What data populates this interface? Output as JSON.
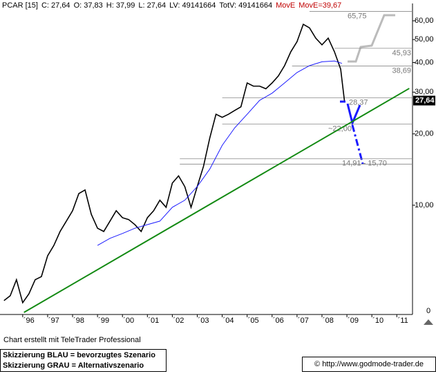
{
  "chart_data": {
    "type": "line",
    "header": [
      "PCAR [15]",
      "C: 27,64",
      "O: 37,83",
      "H: 37,99",
      "L: 27,64",
      "LV: 49141664",
      "TotV: 49141664",
      "MovE",
      "MovE=39,67"
    ],
    "log_scale": true,
    "xlim": [
      1995.09,
      2011.63
    ],
    "ylim": [
      3.46,
      71
    ],
    "xticks": [
      {
        "value": 1996,
        "label": "´96"
      },
      {
        "value": 1997,
        "label": "´97"
      },
      {
        "value": 1998,
        "label": "´98"
      },
      {
        "value": 1999,
        "label": "´99"
      },
      {
        "value": 2000,
        "label": "´00"
      },
      {
        "value": 2001,
        "label": "´01"
      },
      {
        "value": 2002,
        "label": "´02"
      },
      {
        "value": 2003,
        "label": "´03"
      },
      {
        "value": 2004,
        "label": "´04"
      },
      {
        "value": 2005,
        "label": "´05"
      },
      {
        "value": 2006,
        "label": "´06"
      },
      {
        "value": 2007,
        "label": "´07"
      },
      {
        "value": 2008,
        "label": "´08"
      },
      {
        "value": 2009,
        "label": "´09"
      },
      {
        "value": 2010,
        "label": "´10"
      },
      {
        "value": 2011,
        "label": "´11"
      }
    ],
    "yticks": [
      {
        "value": 10,
        "label": "10,00"
      },
      {
        "value": 20,
        "label": "20,00"
      },
      {
        "value": 30,
        "label": "30,00"
      },
      {
        "value": 40,
        "label": "40,00"
      },
      {
        "value": 50,
        "label": "50,00"
      },
      {
        "value": 60,
        "label": "60,00"
      }
    ],
    "bottom_label": "0",
    "series": [
      {
        "color": "#000000",
        "x": [
          1995.25,
          1995.5,
          1995.75,
          1996.0,
          1996.25,
          1996.5,
          1996.75,
          1997.0,
          1997.25,
          1997.5,
          1997.75,
          1998.0,
          1998.25,
          1998.5,
          1998.75,
          1999.0,
          1999.25,
          1999.5,
          1999.75,
          2000.0,
          2000.25,
          2000.5,
          2000.75,
          2001.0,
          2001.25,
          2001.5,
          2001.75,
          2002.0,
          2002.25,
          2002.5,
          2002.75,
          2003.0,
          2003.25,
          2003.5,
          2003.75,
          2004.0,
          2004.25,
          2004.5,
          2004.75,
          2005.0,
          2005.25,
          2005.5,
          2005.75,
          2006.0,
          2006.25,
          2006.5,
          2006.75,
          2007.0,
          2007.25,
          2007.5,
          2007.75,
          2008.0,
          2008.25,
          2008.5,
          2008.75,
          2008.9
        ],
        "values": [
          3.96,
          4.15,
          4.85,
          3.88,
          4.23,
          4.85,
          5.0,
          6.12,
          6.77,
          7.75,
          8.57,
          9.48,
          11.2,
          11.6,
          9.16,
          8.0,
          7.75,
          8.57,
          9.48,
          8.86,
          8.7,
          8.28,
          7.75,
          8.86,
          9.48,
          10.5,
          9.8,
          12.4,
          13.3,
          11.98,
          9.8,
          12.0,
          14.6,
          19.2,
          24.2,
          23.5,
          24.2,
          25.1,
          26.0,
          32.8,
          31.8,
          31.8,
          31.0,
          32.8,
          35.1,
          38.8,
          44.4,
          49,
          58,
          56,
          50.7,
          47.5,
          50.7,
          44.4,
          37.5,
          27.64
        ]
      },
      {
        "color": "#1a1aff",
        "x": [
          1999.0,
          1999.5,
          2000.0,
          2000.5,
          2001.0,
          2001.5,
          2002.0,
          2002.5,
          2003.0,
          2003.5,
          2004.0,
          2004.5,
          2005.0,
          2005.5,
          2006.0,
          2006.5,
          2007.0,
          2007.5,
          2008.0,
          2008.5,
          2008.8
        ],
        "values": [
          6.77,
          7.25,
          7.6,
          8.0,
          8.28,
          8.57,
          9.8,
          10.5,
          12.0,
          14.2,
          17.9,
          21.2,
          24.2,
          27.7,
          29.7,
          32.8,
          36.3,
          38.8,
          40.3,
          40.6,
          39.67
        ]
      }
    ],
    "trendline": {
      "color": "#138a13",
      "x": [
        1996.05,
        2011.5
      ],
      "values": [
        3.53,
        31.1
      ]
    },
    "levels": [
      {
        "values": [
          65.75
        ],
        "label": "65,75",
        "start": 2007.5
      },
      {
        "values": [
          45.93
        ],
        "label": "45,93",
        "start": 2008.5
      },
      {
        "values": [
          38.69
        ],
        "label": "38,69",
        "start": 2006.8
      },
      {
        "values": [
          28.37
        ],
        "label": "28,37",
        "start": 2004.0
      },
      {
        "values": [
          22.0
        ],
        "label": "~22,00",
        "start": 2004.0
      },
      {
        "values": [
          14.91,
          15.7
        ],
        "label": "14,91 - 15,70",
        "start": 2002.3
      }
    ],
    "last_price": {
      "value": 27.64,
      "label": "27,64"
    },
    "footer": {
      "credit": "Chart erstellt mit TeleTrader Professional",
      "legend_blue": "Skizzierung BLAU = bevorzugtes Szenario",
      "legend_grey": "Skizzierung GRAU = Alternativszenario",
      "copyright": "© http://www.godmode-trader.de"
    }
  }
}
